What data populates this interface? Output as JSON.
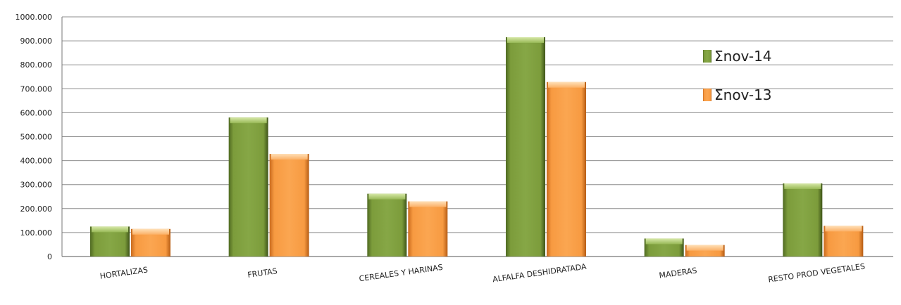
{
  "chart_data": {
    "type": "bar",
    "categories": [
      "HORTALIZAS",
      "FRUTAS",
      "CEREALES Y HARINAS",
      "ALFALFA DESHIDRATADA",
      "MADERAS",
      "RESTO PROD VEGETALES"
    ],
    "series": [
      {
        "name": "Σnov-14",
        "color": "#7a9a3a",
        "values": [
          125000,
          580000,
          262000,
          915000,
          75000,
          305000
        ]
      },
      {
        "name": "Σnov-13",
        "color": "#f79a41",
        "values": [
          115000,
          428000,
          230000,
          728000,
          48000,
          128000
        ]
      }
    ],
    "ylim": [
      0,
      1000000
    ],
    "yticks": [
      "0",
      "100.000",
      "200.000",
      "300.000",
      "400.000",
      "500.000",
      "600.000",
      "700.000",
      "800.000",
      "900.000",
      "1000.000"
    ],
    "grid": true,
    "legend_position": "top-right"
  }
}
